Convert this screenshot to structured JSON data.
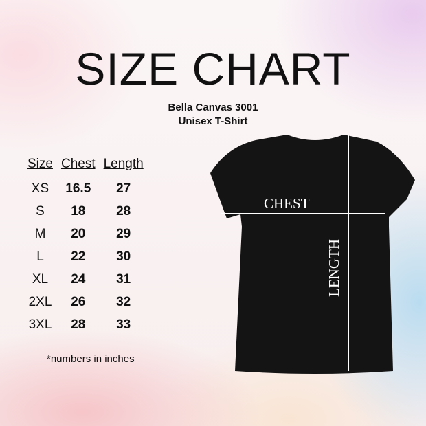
{
  "title": "SIZE CHART",
  "brand": "Bella Canvas 3001",
  "product": "Unisex T-Shirt",
  "table": {
    "headers": [
      "Size",
      "Chest",
      "Length"
    ],
    "rows": [
      [
        "XS",
        "16.5",
        "27"
      ],
      [
        "S",
        "18",
        "28"
      ],
      [
        "M",
        "20",
        "29"
      ],
      [
        "L",
        "22",
        "30"
      ],
      [
        "XL",
        "24",
        "31"
      ],
      [
        "2XL",
        "26",
        "32"
      ],
      [
        "3XL",
        "28",
        "33"
      ]
    ]
  },
  "note": "*numbers in inches",
  "diagram": {
    "chest_label": "CHEST",
    "length_label": "LENGTH",
    "shirt_color": "#141414"
  }
}
